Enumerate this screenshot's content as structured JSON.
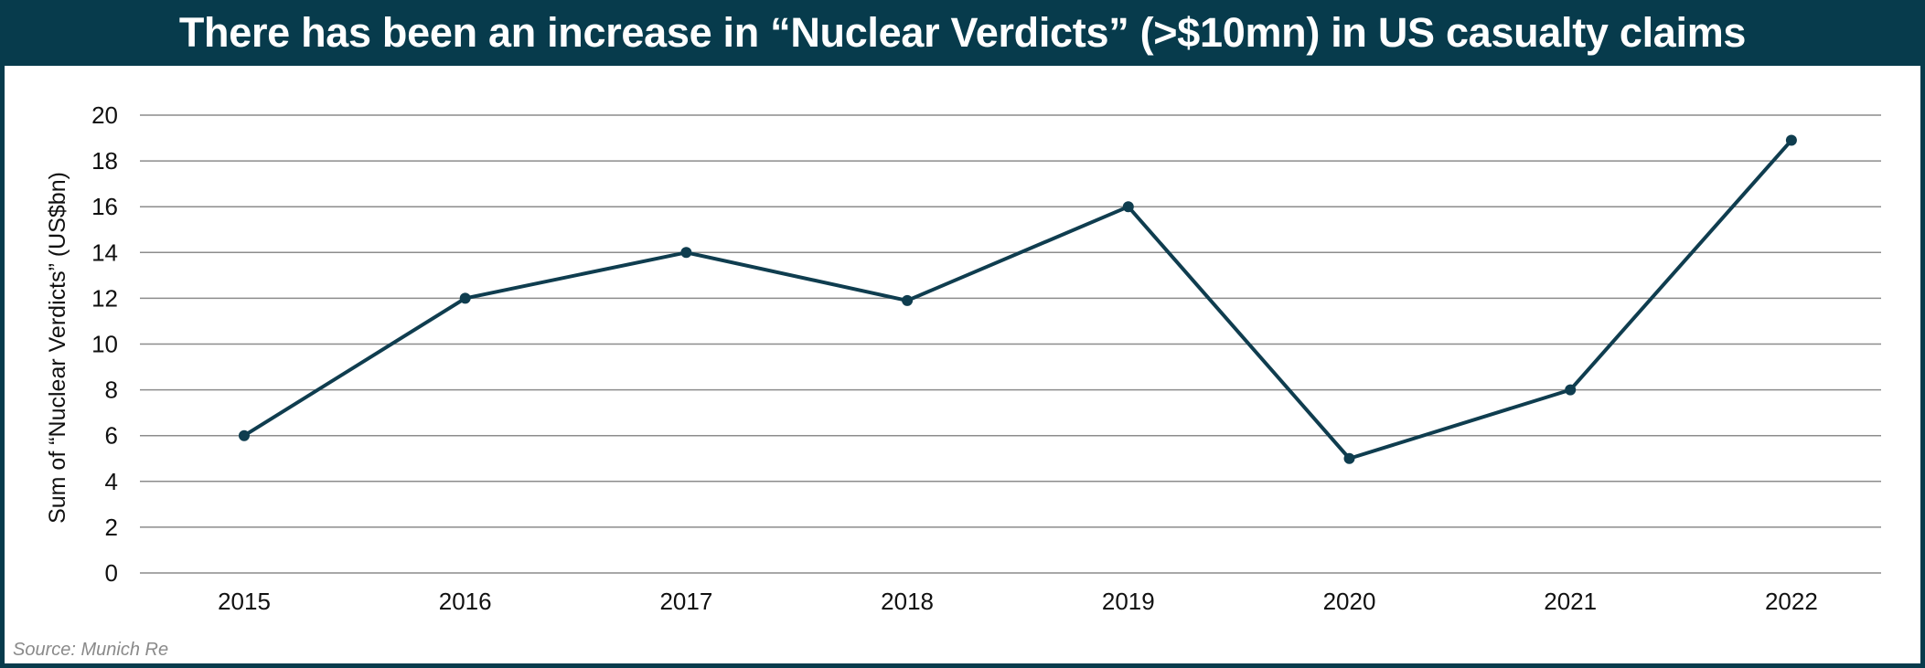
{
  "title": "There has been an increase in “Nuclear Verdicts” (>$10mn) in US casualty claims",
  "source": "Source: Munich Re",
  "colors": {
    "frame": "#073b4c",
    "line": "#0f3d4f",
    "grid": "#8c8c8c",
    "text": "#111111",
    "source": "#8a8a8a"
  },
  "chart_data": {
    "type": "line",
    "categories": [
      "2015",
      "2016",
      "2017",
      "2018",
      "2019",
      "2020",
      "2021",
      "2022"
    ],
    "series": [
      {
        "values": [
          6,
          12,
          14,
          11.9,
          16,
          5,
          8,
          18.9
        ]
      }
    ],
    "xlabel": "",
    "ylabel": "Sum of “Nuclear Verdicts” (US$bn)",
    "ylim": [
      0,
      20
    ],
    "yticks": [
      "0",
      "2",
      "4",
      "6",
      "8",
      "10",
      "12",
      "14",
      "16",
      "18",
      "20"
    ],
    "grid": true,
    "legend": "none"
  }
}
